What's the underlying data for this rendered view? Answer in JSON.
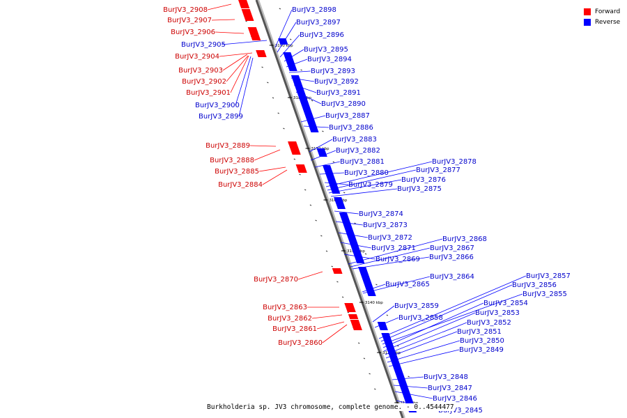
{
  "colors": {
    "forward": "#ff0000",
    "reverse": "#0000ff",
    "axis": "#555555"
  },
  "legend": {
    "forward_label": "Forward",
    "reverse_label": "Reverse"
  },
  "caption": "Burkholderia sp. JV3 chromosome, complete genome. - 0..4544477",
  "ticks": [
    "3190 kbp",
    "3180 kbp",
    "3170 kbp",
    "3160 kbp",
    "3150 kbp",
    "3140 kbp",
    "3130 kbp",
    "3120 kbp"
  ],
  "forward_genes": [
    "BurJV3_2908",
    "BurJV3_2907",
    "BurJV3_2906",
    "BurJV3_2904",
    "BurJV3_2903",
    "BurJV3_2902",
    "BurJV3_2901",
    "BurJV3_2889",
    "BurJV3_2888",
    "BurJV3_2885",
    "BurJV3_2884",
    "BurJV3_2870",
    "BurJV3_2863",
    "BurJV3_2862",
    "BurJV3_2861",
    "BurJV3_2860"
  ],
  "reverse_genes": [
    "BurJV3_2905",
    "BurJV3_2900",
    "BurJV3_2899",
    "BurJV3_2898",
    "BurJV3_2897",
    "BurJV3_2896",
    "BurJV3_2895",
    "BurJV3_2894",
    "BurJV3_2893",
    "BurJV3_2892",
    "BurJV3_2891",
    "BurJV3_2890",
    "BurJV3_2887",
    "BurJV3_2886",
    "BurJV3_2883",
    "BurJV3_2882",
    "BurJV3_2881",
    "BurJV3_2880",
    "BurJV3_2879",
    "BurJV3_2878",
    "BurJV3_2877",
    "BurJV3_2876",
    "BurJV3_2875",
    "BurJV3_2874",
    "BurJV3_2873",
    "BurJV3_2872",
    "BurJV3_2871",
    "BurJV3_2869",
    "BurJV3_2868",
    "BurJV3_2867",
    "BurJV3_2866",
    "BurJV3_2865",
    "BurJV3_2864",
    "BurJV3_2859",
    "BurJV3_2858",
    "BurJV3_2857",
    "BurJV3_2856",
    "BurJV3_2855",
    "BurJV3_2854",
    "BurJV3_2853",
    "BurJV3_2852",
    "BurJV3_2851",
    "BurJV3_2850",
    "BurJV3_2849",
    "BurJV3_2848",
    "BurJV3_2847",
    "BurJV3_2846",
    "BurJV3_2845"
  ]
}
